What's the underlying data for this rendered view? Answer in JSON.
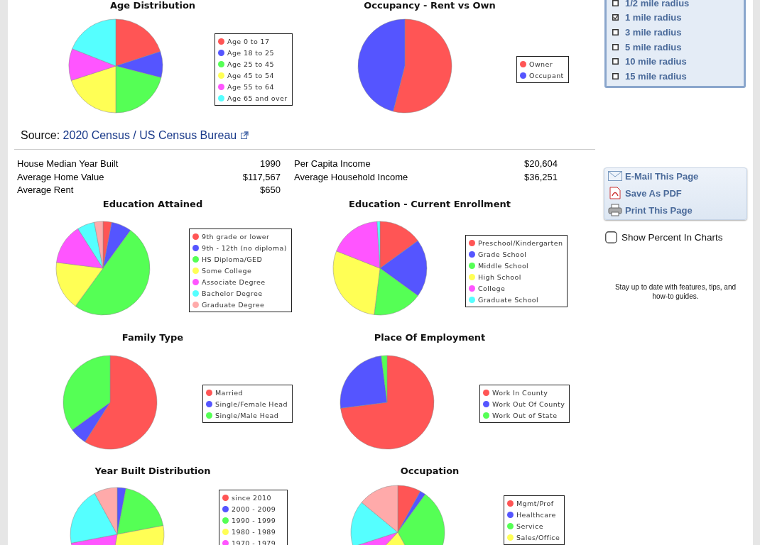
{
  "chart_data": [
    {
      "type": "pie",
      "title": "Age Distribution",
      "legend": "right",
      "categories": [
        "Age 0 to 17",
        "Age 18 to 25",
        "Age 25 to 45",
        "Age 45 to 54",
        "Age 55 to 64",
        "Age 65 and over"
      ],
      "values": [
        20,
        9,
        21,
        20,
        11,
        19
      ],
      "colors": [
        "#ff5555",
        "#5555ff",
        "#55ff55",
        "#ffff55",
        "#ff55ff",
        "#55ffff"
      ]
    },
    {
      "type": "pie",
      "title": "Occupancy - Rent vs Own",
      "legend": "right",
      "categories": [
        "Owner",
        "Occupant"
      ],
      "values": [
        54,
        46
      ],
      "colors": [
        "#ff5555",
        "#5555ff"
      ]
    },
    {
      "type": "other",
      "annotations": [
        "Source:",
        "2020 Census / US Census Bureau",
        "House Median Year Built",
        "1990",
        "Average Home Value",
        "$117,567",
        "Average Rent",
        "$650",
        "Per Capita Income",
        "$20,604",
        "Average Household Income",
        "$36,251"
      ]
    },
    {
      "type": "pie",
      "title": "Education Attained",
      "legend": "right",
      "categories": [
        "9th grade or lower",
        "9th - 12th (no diploma)",
        "HS Diploma/GED",
        "Some College",
        "Associate Degree",
        "Bachelor Degree",
        "Graduate Degree"
      ],
      "values": [
        3,
        7,
        50,
        17,
        14,
        6,
        3
      ],
      "colors": [
        "#ff5555",
        "#5555ff",
        "#55ff55",
        "#ffff55",
        "#ff55ff",
        "#55ffff",
        "#ffaaaa"
      ]
    },
    {
      "type": "pie",
      "title": "Education - Current Enrollment",
      "legend": "right",
      "categories": [
        "Preschool/Kindergarten",
        "Grade School",
        "Middle School",
        "High School",
        "College",
        "Graduate School"
      ],
      "values": [
        15,
        20,
        17,
        29,
        18,
        1
      ],
      "colors": [
        "#ff5555",
        "#5555ff",
        "#55ff55",
        "#ffff55",
        "#ff55ff",
        "#55ffff"
      ]
    },
    {
      "type": "pie",
      "title": "Family Type",
      "legend": "right",
      "categories": [
        "Married",
        "Single/Female Head",
        "Single/Male Head"
      ],
      "values": [
        59,
        6,
        35
      ],
      "colors": [
        "#ff5555",
        "#5555ff",
        "#55ff55"
      ]
    },
    {
      "type": "pie",
      "title": "Place Of Employment",
      "legend": "right",
      "categories": [
        "Work In County",
        "Work Out Of County",
        "Work Out of State"
      ],
      "values": [
        73,
        25,
        2
      ],
      "colors": [
        "#ff5555",
        "#5555ff",
        "#55ff55"
      ]
    },
    {
      "type": "pie",
      "title": "Year Built Distribution",
      "legend": "right",
      "categories": [
        "since 2010",
        "2000 - 2009",
        "1990 - 1999",
        "1980 - 1989",
        "1970 - 1979",
        null,
        null
      ],
      "values": [
        0,
        3,
        19,
        31,
        19,
        20,
        8
      ],
      "colors": [
        "#ff5555",
        "#5555ff",
        "#55ff55",
        "#ffff55",
        "#ff55ff",
        "#55ffff",
        "#ffaaaa"
      ]
    },
    {
      "type": "pie",
      "title": "Occupation",
      "legend": "right",
      "categories": [
        "Mgmt/Prof",
        "Healthcare",
        "Service",
        "Sales/Office",
        null,
        null,
        null
      ],
      "values": [
        8,
        2,
        32,
        20,
        8,
        16,
        14
      ],
      "colors": [
        "#ff5555",
        "#5555ff",
        "#55ff55",
        "#ffff55",
        "#ff55ff",
        "#55ffff",
        "#ffaaaa"
      ]
    },
    {
      "type": "other",
      "annotations": [
        "1/2 mile radius",
        "1 mile radius",
        "3 mile radius",
        "5 mile radius",
        "10 mile radius",
        "15 mile radius",
        "E-Mail This Page",
        "Save As PDF",
        "Print This Page",
        "Show Percent In Charts",
        "Stay up to date with features, tips, and how-to guides."
      ]
    }
  ]
}
